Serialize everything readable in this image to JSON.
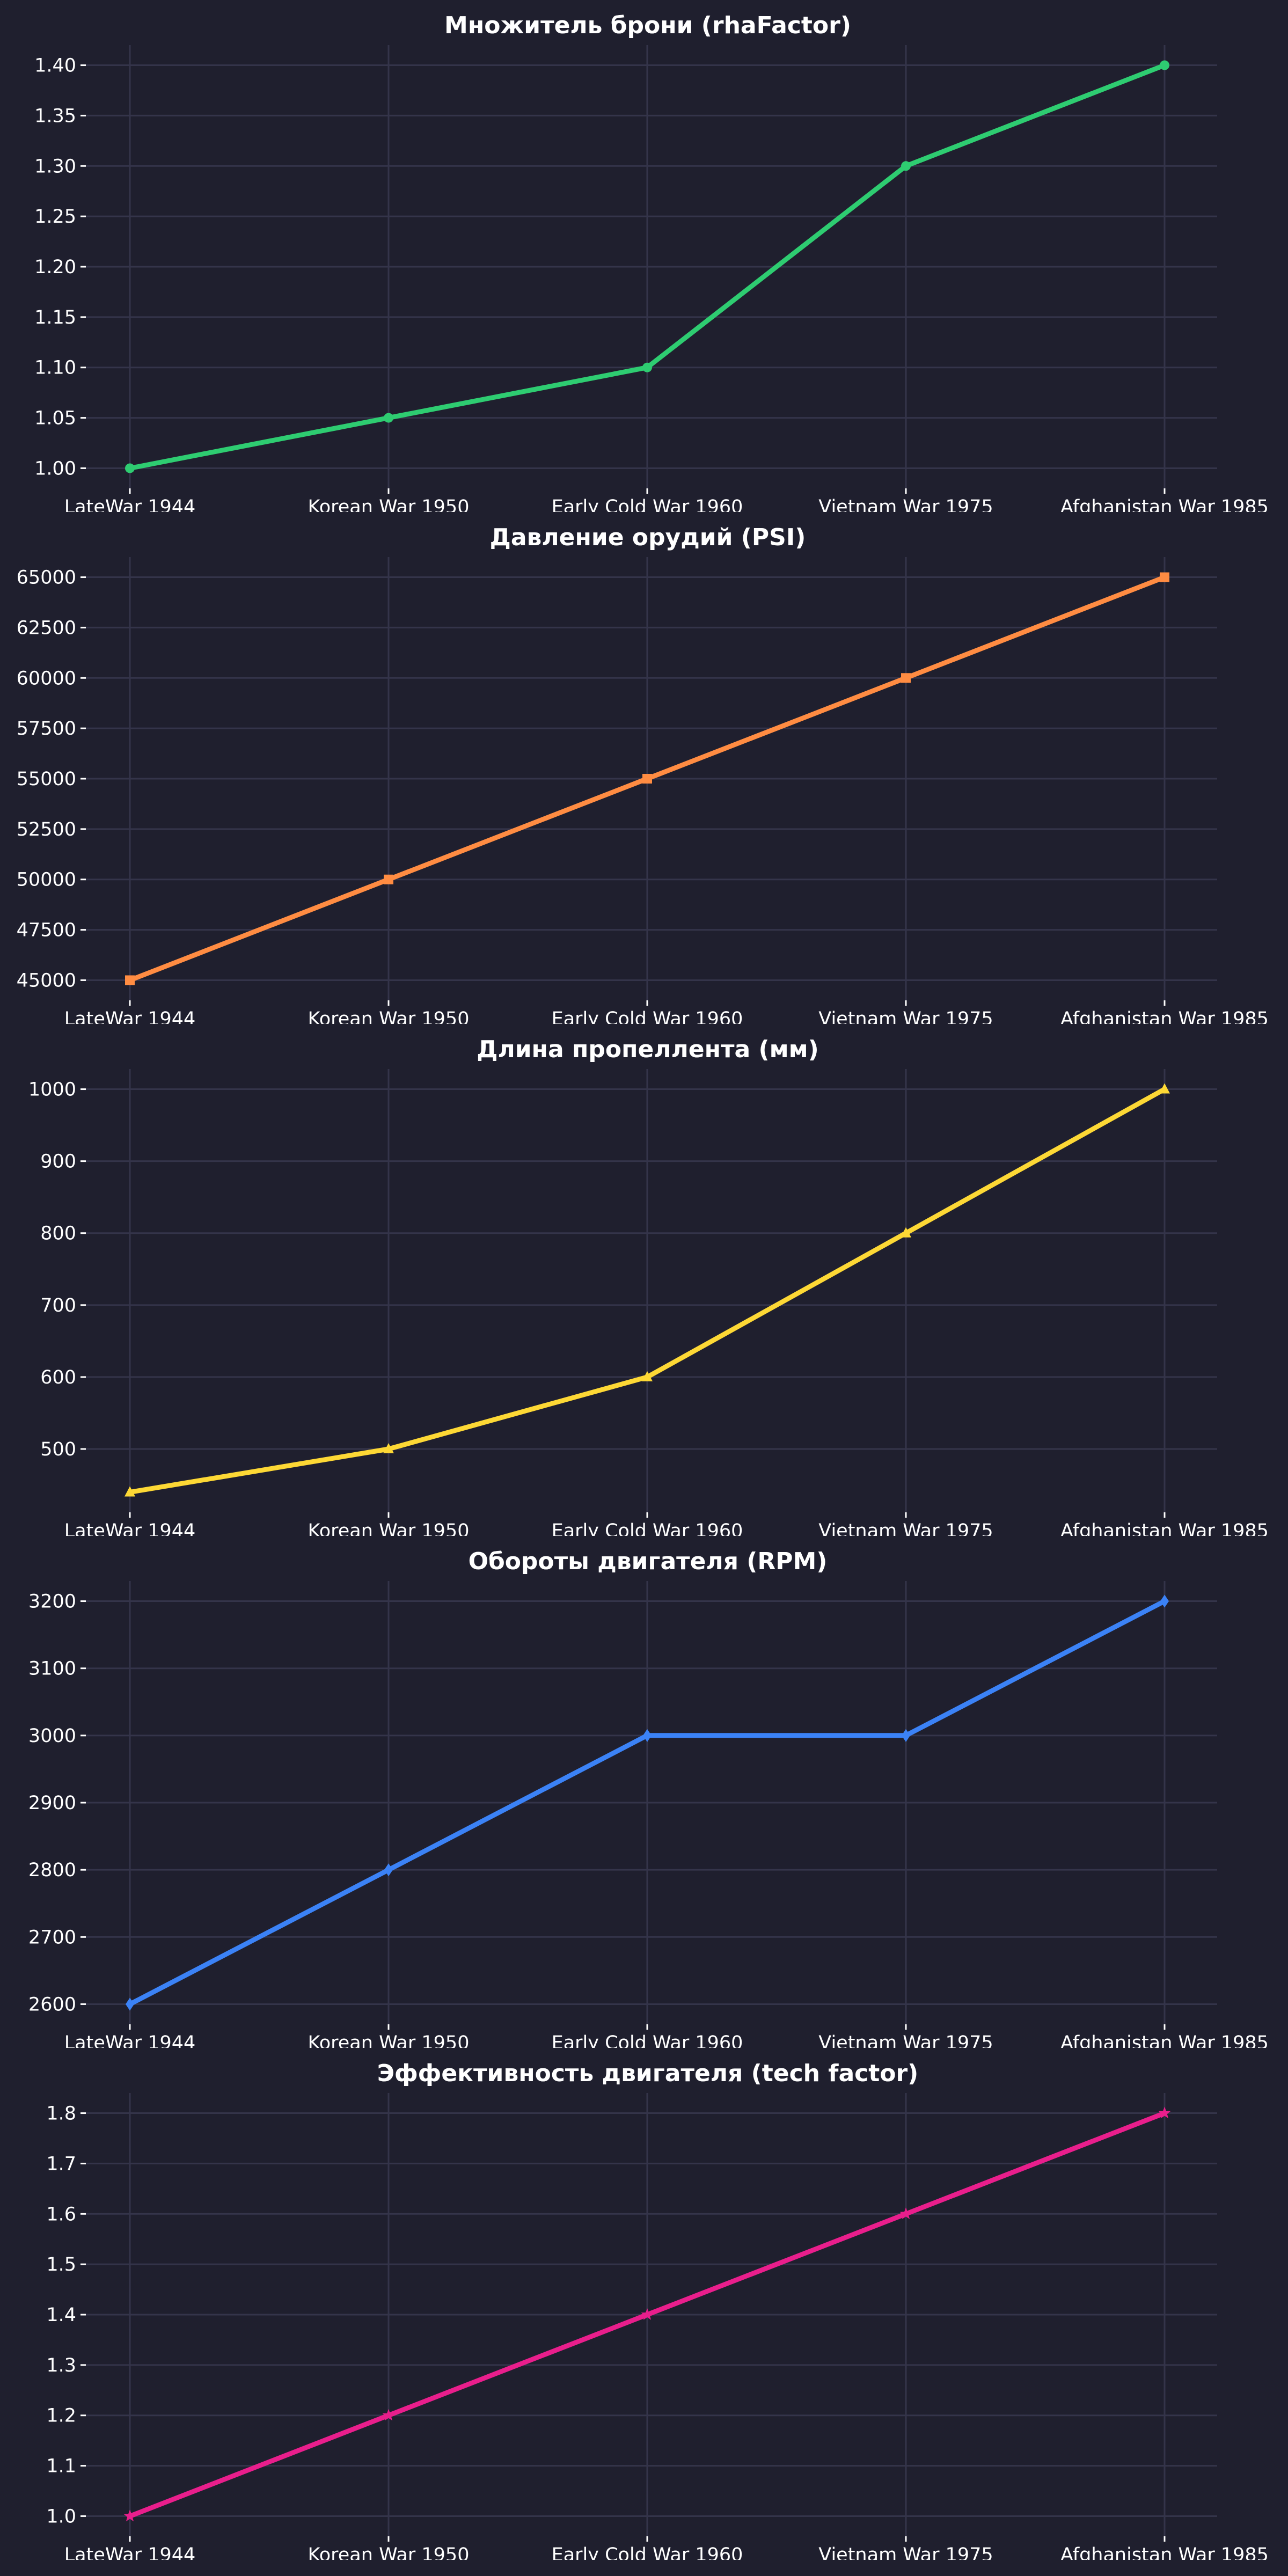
{
  "chart_data": [
    {
      "type": "line",
      "title": "Множитель брони (rhaFactor)",
      "categories": [
        "LateWar 1944",
        "Korean War 1950",
        "Early Cold War 1960",
        "Vietnam War 1975",
        "Afghanistan War 1985"
      ],
      "values": [
        1.0,
        1.05,
        1.1,
        1.3,
        1.4
      ],
      "ylim": [
        0.98,
        1.42
      ],
      "yticks": [
        "1.00",
        "1.05",
        "1.10",
        "1.15",
        "1.20",
        "1.25",
        "1.30",
        "1.35",
        "1.40"
      ],
      "color": "#2ecc71",
      "marker": "circle",
      "grid": true
    },
    {
      "type": "line",
      "title": "Давление орудий (PSI)",
      "categories": [
        "LateWar 1944",
        "Korean War 1950",
        "Early Cold War 1960",
        "Vietnam War 1975",
        "Afghanistan War 1985"
      ],
      "values": [
        45000,
        50000,
        55000,
        60000,
        65000
      ],
      "ylim": [
        44000,
        66000
      ],
      "yticks": [
        "45000",
        "47500",
        "50000",
        "52500",
        "55000",
        "57500",
        "60000",
        "62500",
        "65000"
      ],
      "color": "#ff8c42",
      "marker": "square",
      "grid": true
    },
    {
      "type": "line",
      "title": "Длина пропеллента (мм)",
      "categories": [
        "LateWar 1944",
        "Korean War 1950",
        "Early Cold War 1960",
        "Vietnam War 1975",
        "Afghanistan War 1985"
      ],
      "values": [
        440,
        500,
        600,
        800,
        1000
      ],
      "ylim": [
        412,
        1028
      ],
      "yticks": [
        "500",
        "600",
        "700",
        "800",
        "900",
        "1000"
      ],
      "color": "#fdd835",
      "marker": "triangle",
      "grid": true
    },
    {
      "type": "line",
      "title": "Обороты двигателя (RPM)",
      "categories": [
        "LateWar 1944",
        "Korean War 1950",
        "Early Cold War 1960",
        "Vietnam War 1975",
        "Afghanistan War 1985"
      ],
      "values": [
        2600,
        2800,
        3000,
        3000,
        3200
      ],
      "ylim": [
        2570,
        3230
      ],
      "yticks": [
        "2600",
        "2700",
        "2800",
        "2900",
        "3000",
        "3100",
        "3200"
      ],
      "color": "#3b82f6",
      "marker": "diamond",
      "grid": true
    },
    {
      "type": "line",
      "title": "Эффективность двигателя (tech factor)",
      "categories": [
        "LateWar 1944",
        "Korean War 1950",
        "Early Cold War 1960",
        "Vietnam War 1975",
        "Afghanistan War 1985"
      ],
      "values": [
        1.0,
        1.2,
        1.4,
        1.6,
        1.8
      ],
      "ylim": [
        0.96,
        1.84
      ],
      "yticks": [
        "1.0",
        "1.1",
        "1.2",
        "1.3",
        "1.4",
        "1.5",
        "1.6",
        "1.7",
        "1.8"
      ],
      "color": "#e91e8c",
      "marker": "star",
      "grid": true
    }
  ]
}
